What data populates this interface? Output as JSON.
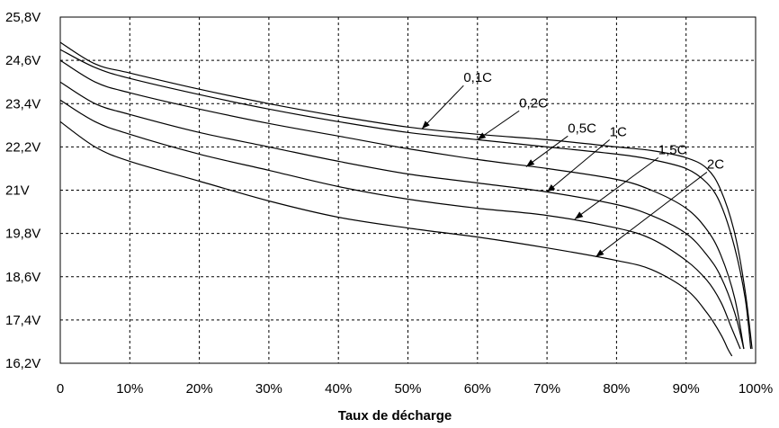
{
  "chart_data": {
    "type": "line",
    "xlabel": "Taux de décharge",
    "ylabel": "",
    "xlim": [
      0,
      100
    ],
    "ylim": [
      16.2,
      25.8
    ],
    "grid": true,
    "x_ticks": [
      {
        "value": 0,
        "label": "0"
      },
      {
        "value": 10,
        "label": "10%"
      },
      {
        "value": 20,
        "label": "20%"
      },
      {
        "value": 30,
        "label": "30%"
      },
      {
        "value": 40,
        "label": "40%"
      },
      {
        "value": 50,
        "label": "50%"
      },
      {
        "value": 60,
        "label": "60%"
      },
      {
        "value": 70,
        "label": "70%"
      },
      {
        "value": 80,
        "label": "80%"
      },
      {
        "value": 90,
        "label": "90%"
      },
      {
        "value": 100,
        "label": "100%"
      }
    ],
    "y_ticks": [
      {
        "value": 25.8,
        "label": "25,8V"
      },
      {
        "value": 24.6,
        "label": "24,6V"
      },
      {
        "value": 23.4,
        "label": "23,4V"
      },
      {
        "value": 22.2,
        "label": "22,2V"
      },
      {
        "value": 21.0,
        "label": "21V"
      },
      {
        "value": 19.8,
        "label": "19,8V"
      },
      {
        "value": 18.6,
        "label": "18,6V"
      },
      {
        "value": 17.4,
        "label": "17,4V"
      },
      {
        "value": 16.2,
        "label": "16,2V"
      }
    ],
    "series": [
      {
        "name": "0,1C",
        "x": [
          0,
          5,
          10,
          20,
          30,
          40,
          50,
          60,
          70,
          80,
          85,
          90,
          93,
          95,
          97,
          98.5,
          99.5
        ],
        "y": [
          25.1,
          24.5,
          24.25,
          23.8,
          23.4,
          23.05,
          22.75,
          22.55,
          22.4,
          22.2,
          22.1,
          21.9,
          21.6,
          21.0,
          19.8,
          18.2,
          16.6
        ]
      },
      {
        "name": "0,2C",
        "x": [
          0,
          5,
          10,
          20,
          30,
          40,
          50,
          60,
          70,
          80,
          85,
          90,
          93,
          95,
          97,
          98.5,
          99.3
        ],
        "y": [
          24.9,
          24.4,
          24.1,
          23.65,
          23.25,
          22.9,
          22.6,
          22.4,
          22.2,
          22.0,
          21.85,
          21.6,
          21.2,
          20.6,
          19.4,
          18.0,
          16.6
        ]
      },
      {
        "name": "0,5C",
        "x": [
          0,
          5,
          10,
          20,
          30,
          40,
          50,
          60,
          70,
          80,
          85,
          90,
          93,
          95,
          97,
          98.3
        ],
        "y": [
          24.6,
          24.0,
          23.7,
          23.25,
          22.85,
          22.5,
          22.15,
          21.85,
          21.6,
          21.3,
          21.0,
          20.5,
          19.9,
          19.2,
          18.0,
          16.6
        ]
      },
      {
        "name": "1C",
        "x": [
          0,
          5,
          10,
          20,
          30,
          40,
          50,
          60,
          70,
          80,
          85,
          90,
          93,
          95,
          97,
          98.3
        ],
        "y": [
          24.0,
          23.4,
          23.1,
          22.6,
          22.2,
          21.8,
          21.45,
          21.2,
          20.95,
          20.6,
          20.3,
          19.8,
          19.2,
          18.6,
          17.6,
          16.6
        ]
      },
      {
        "name": "1,5C",
        "x": [
          0,
          5,
          10,
          20,
          30,
          40,
          50,
          60,
          70,
          80,
          85,
          90,
          93,
          95,
          96.5,
          97.8
        ],
        "y": [
          23.5,
          22.9,
          22.55,
          22.0,
          21.55,
          21.1,
          20.75,
          20.5,
          20.3,
          19.95,
          19.65,
          19.05,
          18.5,
          17.9,
          17.2,
          16.6
        ]
      },
      {
        "name": "2C",
        "x": [
          0,
          5,
          10,
          20,
          30,
          40,
          50,
          60,
          70,
          80,
          85,
          90,
          93,
          95,
          96,
          96.6
        ],
        "y": [
          22.9,
          22.2,
          21.8,
          21.25,
          20.7,
          20.25,
          19.95,
          19.7,
          19.4,
          19.05,
          18.8,
          18.25,
          17.6,
          17.0,
          16.6,
          16.4
        ]
      }
    ],
    "annotations": [
      {
        "text": "0,1C",
        "series": "0,1C",
        "point": [
          52,
          22.7
        ],
        "label_at": [
          58,
          24.0
        ]
      },
      {
        "text": "0,2C",
        "series": "0,2C",
        "point": [
          60,
          22.4
        ],
        "label_at": [
          66,
          23.3
        ]
      },
      {
        "text": "0,5C",
        "series": "0,5C",
        "point": [
          67,
          21.65
        ],
        "label_at": [
          73,
          22.6
        ]
      },
      {
        "text": "1C",
        "series": "1C",
        "point": [
          70,
          20.95
        ],
        "label_at": [
          79,
          22.5
        ]
      },
      {
        "text": "1,5C",
        "series": "1,5C",
        "point": [
          74,
          20.2
        ],
        "label_at": [
          86,
          22.0
        ]
      },
      {
        "text": "2C",
        "series": "2C",
        "point": [
          77,
          19.15
        ],
        "label_at": [
          93,
          21.6
        ]
      }
    ]
  }
}
